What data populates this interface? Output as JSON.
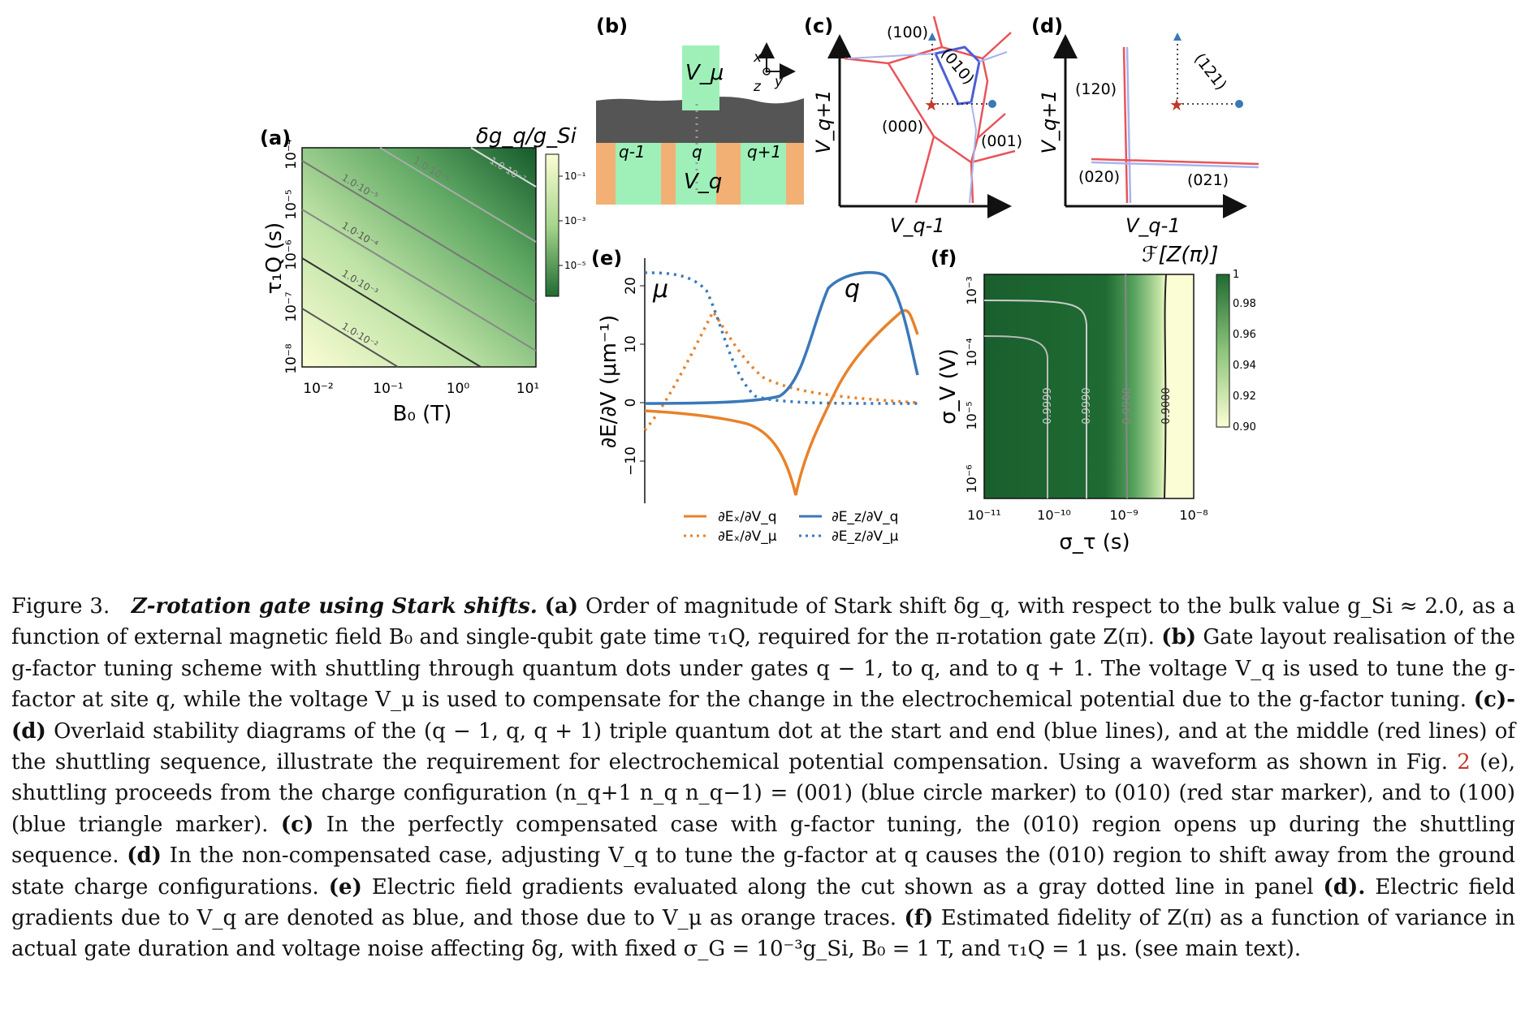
{
  "panels": {
    "a": {
      "letter": "(a)",
      "xlabel": "B₀ (T)",
      "ylabel": "τ₁Q (s)",
      "cbar_title": "δg_q/g_Si",
      "xticks": [
        "10⁻²",
        "10⁻¹",
        "10⁰",
        "10¹"
      ],
      "yticks": [
        "10⁻⁸",
        "10⁻⁷",
        "10⁻⁶",
        "10⁻⁵",
        "10⁻⁴"
      ],
      "cbar_ticks": [
        "10⁻¹",
        "10⁻³",
        "10⁻⁵"
      ],
      "contours": [
        {
          "label": "1.0·10⁻²",
          "value": 0.01
        },
        {
          "label": "1.0·10⁻³",
          "value": 0.001
        },
        {
          "label": "1.0·10⁻⁴",
          "value": 0.0001
        },
        {
          "label": "1.0·10⁻⁵",
          "value": 1e-05
        },
        {
          "label": "1.0·10⁻⁶",
          "value": 1e-06
        },
        {
          "label": "1.0·10⁻⁷",
          "value": 1e-07
        }
      ]
    },
    "b": {
      "letter": "(b)",
      "gate_top": "V_μ",
      "gate_q": "V_q",
      "labels": [
        "q-1",
        "q",
        "q+1"
      ],
      "axes": {
        "x": "x",
        "y": "y",
        "z": "z"
      }
    },
    "c": {
      "letter": "(c)",
      "xlabel": "V_q-1",
      "ylabel": "V_q+1",
      "regions": [
        "(100)",
        "(010)",
        "(000)",
        "(001)"
      ]
    },
    "d": {
      "letter": "(d)",
      "xlabel": "V_q-1",
      "ylabel": "V_q+1",
      "regions": [
        "(120)",
        "(121)",
        "(020)",
        "(021)"
      ]
    },
    "e": {
      "letter": "(e)",
      "ylabel": "∂E/∂V (μm⁻¹)",
      "yticks": [
        "−10",
        "0",
        "10",
        "20"
      ],
      "annotations": [
        "μ",
        "q"
      ],
      "legend": [
        "∂Eₓ/∂V_q",
        "∂Eₓ/∂V_μ",
        "∂E_z/∂V_q",
        "∂E_z/∂V_μ"
      ]
    },
    "f": {
      "letter": "(f)",
      "xlabel": "σ_τ (s)",
      "ylabel": "σ_V (V)",
      "cbar_title": "ℱ[Z(π)]",
      "xticks": [
        "10⁻¹¹",
        "10⁻¹⁰",
        "10⁻⁹",
        "10⁻⁸"
      ],
      "yticks": [
        "10⁻⁶",
        "10⁻⁵",
        "10⁻⁴",
        "10⁻³"
      ],
      "cbar_ticks": [
        "1",
        "0.98",
        "0.96",
        "0.94",
        "0.92",
        "0.90"
      ],
      "contours": [
        "0.9999",
        "0.9990",
        "0.9900",
        "0.9000"
      ]
    }
  },
  "colors": {
    "green_dark": "#1f6b32",
    "green_light": "#fbfdd4",
    "orange": "#e8822a",
    "blue": "#3a78b8",
    "red": "#e8545a"
  },
  "caption": {
    "fig_label": "Figure 3.",
    "title": "Z-rotation gate using Stark shifts.",
    "p1_label": "(a)",
    "p1": "Order of magnitude of Stark shift δg_q, with respect to the bulk value g_Si ≈ 2.0, as a function of external magnetic field B₀ and single-qubit gate time τ₁Q, required for the π-rotation gate Z(π).",
    "p2_label": "(b)",
    "p2": "Gate layout realisation of the g-factor tuning scheme with shuttling through quantum dots under gates q − 1, to q, and to q + 1. The voltage V_q is used to tune the g-factor at site q, while the voltage V_μ is used to compensate for the change in the electrochemical potential due to the g-factor tuning.",
    "p3_label": "(c)-(d)",
    "p3a": "Overlaid stability diagrams of the (q − 1, q, q + 1) triple quantum dot at the start and end (blue lines), and at the middle (red lines) of the shuttling sequence, illustrate the requirement for electrochemical potential compensation. Using a waveform as shown in Fig.",
    "p3_ref": "2",
    "p3b": "(e), shuttling proceeds from the charge configuration (n_q+1 n_q n_q−1) = (001) (blue circle marker) to (010) (red star marker), and to (100) (blue triangle marker).",
    "p4_label": "(c)",
    "p4": "In the perfectly compensated case with g-factor tuning, the (010) region opens up during the shuttling sequence.",
    "p5_label": "(d)",
    "p5": "In the non-compensated case, adjusting V_q to tune the g-factor at q causes the (010) region to shift away from the ground state charge configurations.",
    "p6_label": "(e)",
    "p6a": "Electric field gradients evaluated along the cut shown as a gray dotted line in panel",
    "p6_ref": "(d).",
    "p6b": "Electric field gradients due to V_q are denoted as blue, and those due to V_μ as orange traces.",
    "p7_label": "(f)",
    "p7": "Estimated fidelity of Z(π) as a function of variance in actual gate duration and voltage noise affecting δg, with fixed σ_G = 10⁻³g_Si, B₀ = 1 T, and τ₁Q = 1 μs. (see main text)."
  }
}
